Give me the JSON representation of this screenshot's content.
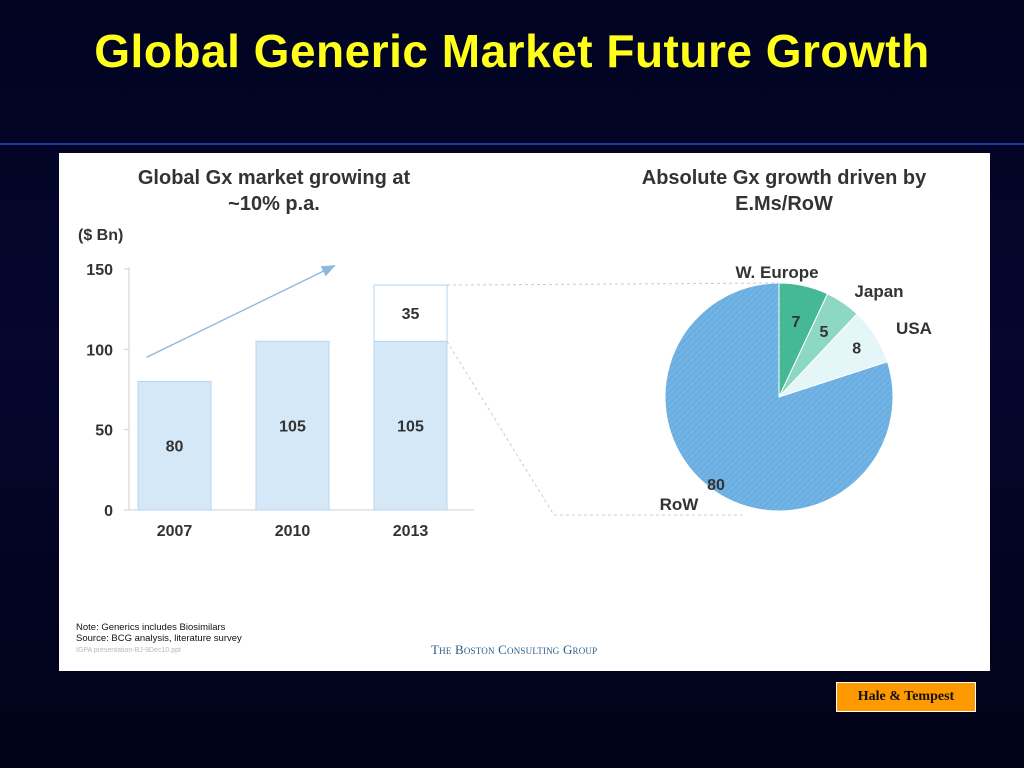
{
  "slide": {
    "title": "Global Generic Market Future Growth",
    "watermark": "Hale & Tempest"
  },
  "panel": {
    "left_heading_line1": "Global Gx market growing at",
    "left_heading_line2": "~10% p.a.",
    "unit_label": "($ Bn)",
    "right_heading_line1": "Absolute Gx growth driven by",
    "right_heading_line2": "E.Ms/RoW",
    "note_line1": "Note: Generics includes Biosimilars",
    "note_line2": "Source: BCG analysis, literature survey",
    "file_ref": "IGPA presentation-BJ-9Dec10.ppt",
    "logo_text": "The Boston Consulting Group"
  },
  "chart_data": [
    {
      "type": "bar",
      "title": "Global Gx market growing at ~10% p.a.",
      "ylabel": "($ Bn)",
      "categories": [
        "2007",
        "2010",
        "2013"
      ],
      "series": [
        {
          "values": [
            80,
            105,
            105
          ]
        },
        {
          "values": [
            0,
            0,
            35
          ]
        }
      ],
      "ylim": [
        0,
        150
      ],
      "yticks": [
        0,
        50,
        100,
        150
      ],
      "grid": false,
      "annotations": [
        "growth-arrow"
      ],
      "colors": {
        "bar_fill": "#d4e8f8",
        "bar_stroke": "#b8d6ef",
        "top_segment_fill": "#ffffff"
      }
    },
    {
      "type": "pie",
      "title": "Absolute Gx growth driven by E.Ms/RoW",
      "slices": [
        {
          "label": "W. Europe",
          "value": 7,
          "color": "#45b895"
        },
        {
          "label": "Japan",
          "value": 5,
          "color": "#8dd8c3"
        },
        {
          "label": "USA",
          "value": 8,
          "color": "#e4f6f8"
        },
        {
          "label": "RoW",
          "value": 80,
          "color": "#6aaee2"
        }
      ]
    }
  ]
}
